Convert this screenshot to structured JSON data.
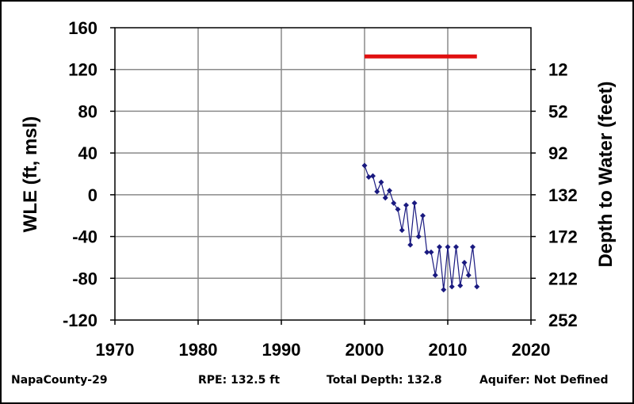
{
  "chart_data": {
    "type": "line",
    "ylabel_left": "WLE (ft, msl)",
    "ylabel_right": "Depth to Water (feet)",
    "xlim": [
      1970,
      2020
    ],
    "ylim": [
      -120,
      160
    ],
    "x_ticks": [
      "1970",
      "1980",
      "1990",
      "2000",
      "2010",
      "2020"
    ],
    "y_ticks_left": [
      "160",
      "120",
      "80",
      "40",
      "0",
      "-40",
      "-80",
      "-120"
    ],
    "y_ticks_right": [
      "12",
      "52",
      "92",
      "132",
      "172",
      "212",
      "252"
    ],
    "grid": true,
    "colors": {
      "series": "#1a1a80",
      "reference_line": "#e01010"
    },
    "reference_line": {
      "x": [
        2000,
        2013.5
      ],
      "y": 132.5
    },
    "series": [
      {
        "x": [
          2000.0,
          2000.5,
          2001.0,
          2001.5,
          2002.0,
          2002.5,
          2003.0,
          2003.5,
          2004.0,
          2004.5,
          2005.0,
          2005.5,
          2006.0,
          2006.5,
          2007.0,
          2007.5,
          2008.0,
          2008.5,
          2009.0,
          2009.5,
          2010.0,
          2010.5,
          2011.0,
          2011.5,
          2012.0,
          2012.5,
          2013.0,
          2013.5
        ],
        "y": [
          28,
          17,
          18,
          3,
          12,
          -3,
          4,
          -8,
          -14,
          -34,
          -10,
          -48,
          -8,
          -40,
          -20,
          -55,
          -55,
          -77,
          -50,
          -91,
          -50,
          -88,
          -50,
          -87,
          -65,
          -77,
          -50,
          -88
        ]
      }
    ]
  },
  "footer": {
    "well_id": "NapaCounty-29",
    "rpe": "RPE: 132.5 ft",
    "total_depth": "Total Depth: 132.8",
    "aquifer": "Aquifer: Not Defined"
  }
}
